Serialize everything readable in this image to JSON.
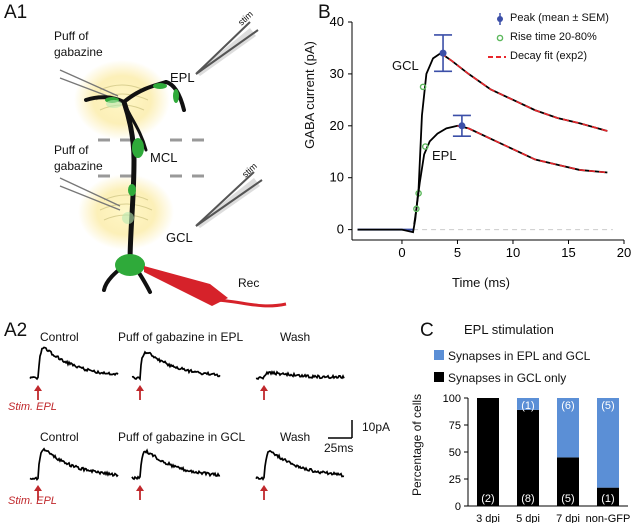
{
  "panels": {
    "a1": "A1",
    "a2": "A2",
    "b": "B",
    "c": "C"
  },
  "a1": {
    "puff_top": [
      "Puff of",
      "gabazine"
    ],
    "puff_bottom": [
      "Puff of",
      "gabazine"
    ],
    "stim_top": "stim",
    "stim_bottom": "stim",
    "layers": {
      "epl": "EPL",
      "mcl": "MCL",
      "gcl": "GCL"
    },
    "rec": "Rec"
  },
  "a2": {
    "row1": [
      "Control",
      "Puff of gabazine in EPL",
      "Wash"
    ],
    "row2": [
      "Control",
      "Puff of gabazine in GCL",
      "Wash"
    ],
    "stim_label": "Stim. EPL",
    "scale_y": "10pA",
    "scale_x": "25ms",
    "arrow_color": "#c0282c"
  },
  "chart_data": [
    {
      "type": "line",
      "panel": "B",
      "xlabel": "Time (ms)",
      "ylabel": "GABA current (pA)",
      "xlim": [
        -4.5,
        20
      ],
      "ylim": [
        -2,
        40
      ],
      "xticks": [
        0,
        5,
        10,
        15,
        20
      ],
      "yticks": [
        0,
        10,
        20,
        30,
        40
      ],
      "legend_position": "top-right",
      "legend": [
        {
          "label": "Peak (mean ± SEM)",
          "color": "#3b4fa8"
        },
        {
          "label": "Rise time 20-80%",
          "color": "#5cb85c"
        },
        {
          "label": "Decay fit (exp2)",
          "color": "#e8262b"
        }
      ],
      "series": [
        {
          "name": "GCL",
          "peak": {
            "x": 3.7,
            "y": 34,
            "sem": 3.5
          },
          "rise_points": [
            [
              1.5,
              7
            ],
            [
              1.9,
              27.5
            ]
          ],
          "x": [
            -4,
            0,
            1.0,
            1.2,
            1.5,
            1.8,
            2.2,
            2.8,
            3.5,
            4.5,
            6,
            8,
            10,
            12,
            14,
            16,
            18.5
          ],
          "y": [
            0,
            0,
            -0.5,
            2,
            8,
            22,
            30,
            33,
            34,
            32.5,
            30,
            27,
            25,
            23,
            21.5,
            20.5,
            19
          ]
        },
        {
          "name": "EPL",
          "peak": {
            "x": 5.4,
            "y": 20,
            "sem": 2
          },
          "rise_points": [
            [
              1.3,
              4
            ],
            [
              2.1,
              16
            ]
          ],
          "x": [
            1.1,
            1.3,
            1.6,
            2.0,
            2.5,
            3.2,
            4.0,
            5.0,
            6,
            8,
            10,
            12,
            14,
            16,
            18.5
          ],
          "y": [
            1,
            4,
            9,
            14.5,
            17,
            18.5,
            19.5,
            20,
            19.5,
            17.5,
            15.5,
            13.5,
            12.5,
            11.5,
            11
          ]
        }
      ],
      "baseline": {
        "x": [
          -4,
          1
        ],
        "y": 0,
        "color": "#3b4fa8"
      }
    },
    {
      "type": "bar",
      "panel": "C",
      "title": "EPL stimulation",
      "ylabel": "Percentage of cells",
      "ylim": [
        0,
        100
      ],
      "yticks": [
        0,
        25,
        50,
        75,
        100
      ],
      "categories": [
        "3 dpi",
        "5 dpi",
        "7 dpi",
        "non-GFP"
      ],
      "series": [
        {
          "name": "Synapses in GCL only",
          "color": "#000000",
          "values": [
            100,
            89,
            45,
            17
          ],
          "counts": [
            "(2)",
            "(8)",
            "(5)",
            "(1)"
          ]
        },
        {
          "name": "Synapses in EPL and GCL",
          "color": "#5b8fd6",
          "values": [
            0,
            11,
            55,
            83
          ],
          "counts": [
            "",
            "(1)",
            "(6)",
            "(5)"
          ]
        }
      ]
    }
  ]
}
